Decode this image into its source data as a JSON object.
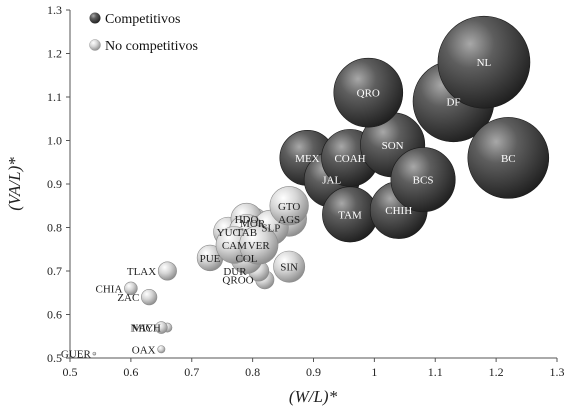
{
  "chart_data": {
    "type": "scatter",
    "variant": "bubble",
    "title": "",
    "xlabel": "(W/L)*",
    "ylabel": "(VA/L)*",
    "xlim": [
      0.5,
      1.3
    ],
    "ylim": [
      0.5,
      1.3
    ],
    "xticks": [
      "0.5",
      "0.6",
      "0.7",
      "0.8",
      "0.9",
      "1",
      "1.1",
      "1.2",
      "1.3"
    ],
    "yticks": [
      "0.5",
      "0.6",
      "0.7",
      "0.8",
      "0.9",
      "1.0",
      "1.1",
      "1.2",
      "1.3"
    ],
    "grid": false,
    "legend_position": "top-left",
    "colors": {
      "competitivos": "#3a3a3a",
      "no_competitivos": "#bdbdbd"
    },
    "series": [
      {
        "name": "Competitivos",
        "points": [
          {
            "label": "NL",
            "x": 1.18,
            "y": 1.18,
            "size": 1.0
          },
          {
            "label": "DF",
            "x": 1.13,
            "y": 1.09,
            "size": 0.88
          },
          {
            "label": "BC",
            "x": 1.22,
            "y": 0.96,
            "size": 0.88
          },
          {
            "label": "QRO",
            "x": 0.99,
            "y": 1.11,
            "size": 0.75
          },
          {
            "label": "SON",
            "x": 1.03,
            "y": 0.99,
            "size": 0.7
          },
          {
            "label": "BCS",
            "x": 1.08,
            "y": 0.91,
            "size": 0.7
          },
          {
            "label": "MEX",
            "x": 0.89,
            "y": 0.96,
            "size": 0.6
          },
          {
            "label": "COAH",
            "x": 0.96,
            "y": 0.96,
            "size": 0.62
          },
          {
            "label": "JAL",
            "x": 0.93,
            "y": 0.91,
            "size": 0.6
          },
          {
            "label": "TAM",
            "x": 0.96,
            "y": 0.83,
            "size": 0.6
          },
          {
            "label": "CHIH",
            "x": 1.04,
            "y": 0.84,
            "size": 0.62
          }
        ]
      },
      {
        "name": "No competitivos",
        "points": [
          {
            "label": "GTO",
            "x": 0.86,
            "y": 0.85,
            "size": 0.42
          },
          {
            "label": "AGS",
            "x": 0.86,
            "y": 0.82,
            "size": 0.38
          },
          {
            "label": "SLP",
            "x": 0.83,
            "y": 0.8,
            "size": 0.38
          },
          {
            "label": "MOR",
            "x": 0.8,
            "y": 0.81,
            "size": 0.34
          },
          {
            "label": "HDO",
            "x": 0.79,
            "y": 0.82,
            "size": 0.34
          },
          {
            "label": "TAB",
            "x": 0.79,
            "y": 0.79,
            "size": 0.38
          },
          {
            "label": "VER",
            "x": 0.81,
            "y": 0.76,
            "size": 0.42
          },
          {
            "label": "YUC",
            "x": 0.76,
            "y": 0.79,
            "size": 0.32
          },
          {
            "label": "CAM",
            "x": 0.77,
            "y": 0.76,
            "size": 0.4
          },
          {
            "label": "COL",
            "x": 0.79,
            "y": 0.73,
            "size": 0.34
          },
          {
            "label": "PUE",
            "x": 0.73,
            "y": 0.73,
            "size": 0.28
          },
          {
            "label": "SIN",
            "x": 0.86,
            "y": 0.71,
            "size": 0.34
          },
          {
            "label": "DUR",
            "x": 0.81,
            "y": 0.7,
            "size": 0.22
          },
          {
            "label": "QROO",
            "x": 0.82,
            "y": 0.68,
            "size": 0.2
          },
          {
            "label": "TLAX",
            "x": 0.66,
            "y": 0.7,
            "size": 0.2
          },
          {
            "label": "CHIA",
            "x": 0.6,
            "y": 0.66,
            "size": 0.14
          },
          {
            "label": "ZAC",
            "x": 0.63,
            "y": 0.64,
            "size": 0.17
          },
          {
            "label": "NAY",
            "x": 0.65,
            "y": 0.57,
            "size": 0.13
          },
          {
            "label": "MICH",
            "x": 0.66,
            "y": 0.57,
            "size": 0.1
          },
          {
            "label": "OAX",
            "x": 0.65,
            "y": 0.52,
            "size": 0.08
          },
          {
            "label": "GUER",
            "x": 0.54,
            "y": 0.51,
            "size": 0.02
          }
        ]
      }
    ]
  }
}
